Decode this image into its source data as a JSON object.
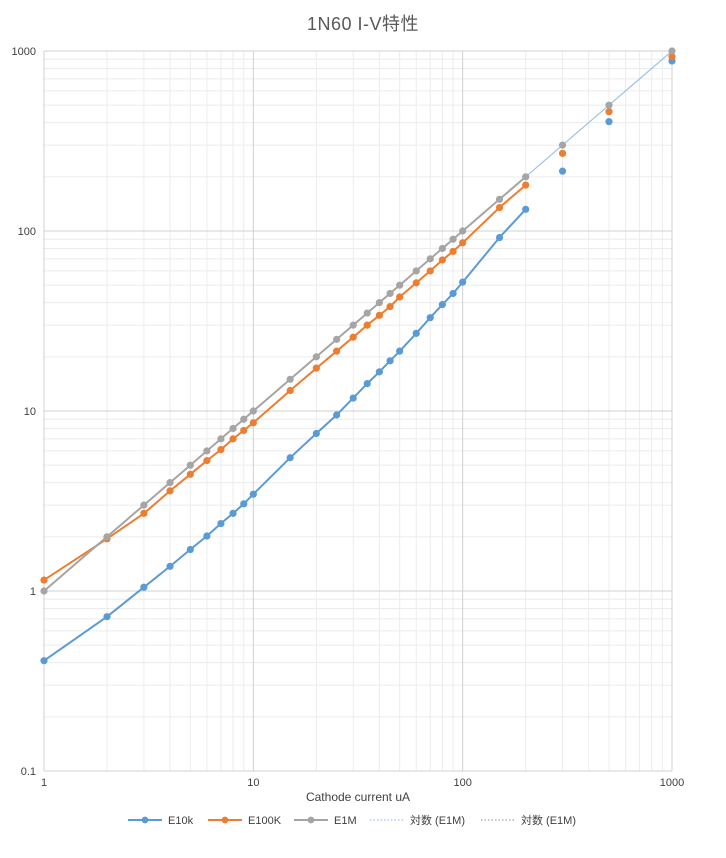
{
  "chart_data": {
    "type": "scatter",
    "title": "1N60  I-V特性",
    "xlabel": "Cathode current   uA",
    "ylabel": "",
    "x_scale": "log",
    "y_scale": "log",
    "xlim": [
      1,
      1000
    ],
    "ylim": [
      0.1,
      1000
    ],
    "x_ticks": [
      "1",
      "10",
      "100",
      "1000"
    ],
    "y_ticks": [
      "0.1",
      "1",
      "10",
      "100",
      "1000"
    ],
    "grid": true,
    "legend_position": "bottom",
    "series": [
      {
        "name": "E10k",
        "color": "#5B9BD5",
        "x": [
          1,
          2,
          3,
          4,
          5,
          6,
          7,
          8,
          9,
          10,
          15,
          20,
          25,
          30,
          35,
          40,
          45,
          50,
          60,
          70,
          80,
          90,
          100,
          150,
          200,
          300,
          500,
          1000
        ],
        "y": [
          0.41,
          0.72,
          1.05,
          1.37,
          1.7,
          2.02,
          2.37,
          2.7,
          3.05,
          3.45,
          5.5,
          7.5,
          9.5,
          11.8,
          14.2,
          16.5,
          19,
          21.5,
          27,
          33,
          39,
          45,
          52,
          92,
          132,
          215,
          405,
          880
        ],
        "line_to_x": 200
      },
      {
        "name": "E100K",
        "color": "#ED7D31",
        "x": [
          1,
          2,
          3,
          4,
          5,
          6,
          7,
          8,
          9,
          10,
          15,
          20,
          25,
          30,
          35,
          40,
          45,
          50,
          60,
          70,
          80,
          90,
          100,
          150,
          200,
          300,
          500,
          1000
        ],
        "y": [
          1.15,
          1.95,
          2.7,
          3.6,
          4.45,
          5.3,
          6.1,
          7.0,
          7.8,
          8.6,
          13,
          17.3,
          21.5,
          25.7,
          30,
          34,
          38,
          43,
          51.5,
          60,
          69,
          77,
          86,
          135,
          180,
          270,
          460,
          930
        ],
        "line_to_x": 200
      },
      {
        "name": "E1M",
        "color": "#A5A5A5",
        "x": [
          1,
          2,
          3,
          4,
          5,
          6,
          7,
          8,
          9,
          10,
          15,
          20,
          25,
          30,
          35,
          40,
          45,
          50,
          60,
          70,
          80,
          90,
          100,
          150,
          200,
          300,
          500,
          1000
        ],
        "y": [
          1.0,
          2.0,
          3.0,
          4.0,
          5.0,
          6.0,
          7.0,
          8.0,
          9.0,
          10,
          15,
          20,
          25,
          30,
          35,
          40,
          45,
          50,
          60,
          70,
          80,
          90,
          100,
          150,
          200,
          300,
          500,
          1000
        ],
        "line_to_x": 200
      }
    ],
    "trendlines": [
      {
        "name": "対数 (E1M)",
        "color": "#9DC3E6",
        "style": "dotted",
        "from": [
          200,
          200
        ],
        "to": [
          1000,
          1000
        ]
      },
      {
        "name": "対数 (E1M)",
        "color": "#A5A5A5",
        "style": "dotted"
      }
    ]
  }
}
